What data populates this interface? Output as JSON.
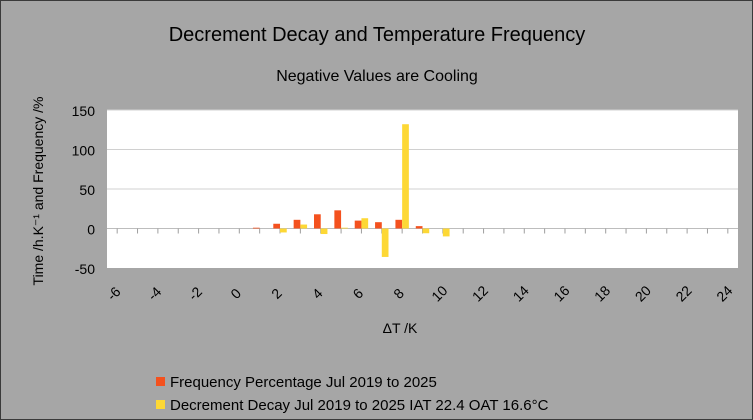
{
  "chart_data": {
    "type": "bar",
    "title": "Decrement Decay and Temperature Frequency",
    "subtitle": "Negative Values are Cooling",
    "xlabel": "ΔT /K",
    "ylabel": "Time /h.K⁻¹ and Frequency /%",
    "ylim": [
      -50,
      150
    ],
    "yticks": [
      -50,
      0,
      50,
      100,
      150
    ],
    "xticks": [
      -6,
      -4,
      -2,
      0,
      2,
      4,
      6,
      8,
      10,
      12,
      14,
      16,
      18,
      20,
      22,
      24
    ],
    "x": [
      -6,
      -5,
      -4,
      -3,
      -2,
      -1,
      0,
      1,
      2,
      3,
      4,
      5,
      6,
      7,
      8,
      9,
      10,
      11,
      12,
      13,
      14,
      15,
      16,
      17,
      18,
      19,
      20,
      21,
      22,
      23,
      24
    ],
    "grid": "horizontal",
    "legend_position": "bottom-left",
    "series": [
      {
        "name": "Frequency Percentage Jul 2019 to 2025",
        "color": "#f4511e",
        "values": [
          0,
          0,
          0,
          0,
          0,
          0,
          0,
          1,
          6,
          11,
          18,
          23,
          10,
          8,
          11,
          3,
          0,
          0,
          0,
          0,
          0,
          0,
          0,
          0,
          0,
          0,
          0,
          0,
          0,
          0,
          0
        ]
      },
      {
        "name": "Decrement Decay Jul 2019 to 2025 IAT 22.4 OAT 16.6°C",
        "color": "#fdd835",
        "values": [
          0,
          0,
          0,
          0,
          0,
          0,
          0,
          0,
          -5,
          5,
          -7,
          1,
          13,
          -36,
          132,
          -6,
          -10,
          0,
          0,
          0,
          0,
          0,
          0,
          0,
          0,
          0,
          0,
          0,
          0,
          0,
          0
        ]
      }
    ]
  }
}
